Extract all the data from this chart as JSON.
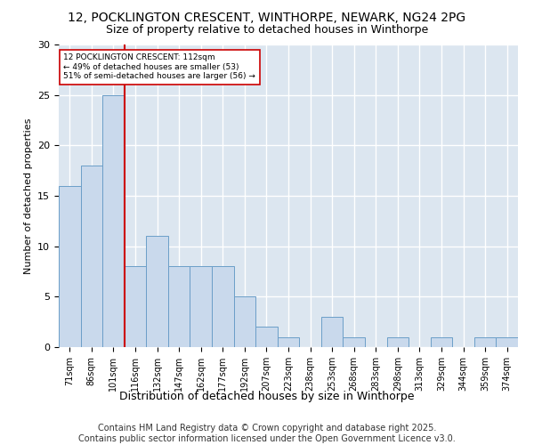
{
  "title1": "12, POCKLINGTON CRESCENT, WINTHORPE, NEWARK, NG24 2PG",
  "title2": "Size of property relative to detached houses in Winthorpe",
  "xlabel": "Distribution of detached houses by size in Winthorpe",
  "ylabel": "Number of detached properties",
  "categories": [
    "71sqm",
    "86sqm",
    "101sqm",
    "116sqm",
    "132sqm",
    "147sqm",
    "162sqm",
    "177sqm",
    "192sqm",
    "207sqm",
    "223sqm",
    "238sqm",
    "253sqm",
    "268sqm",
    "283sqm",
    "298sqm",
    "313sqm",
    "329sqm",
    "344sqm",
    "359sqm",
    "374sqm"
  ],
  "values": [
    16,
    18,
    25,
    8,
    11,
    8,
    8,
    8,
    5,
    2,
    1,
    0,
    3,
    1,
    0,
    1,
    0,
    1,
    0,
    1,
    1
  ],
  "bar_color": "#c9d9ec",
  "bar_edge_color": "#6b9ec8",
  "vline_color": "#cc0000",
  "annotation_text": "12 POCKLINGTON CRESCENT: 112sqm\n← 49% of detached houses are smaller (53)\n51% of semi-detached houses are larger (56) →",
  "annotation_box_color": "#ffffff",
  "annotation_box_edge": "#cc0000",
  "ylim": [
    0,
    30
  ],
  "yticks": [
    0,
    5,
    10,
    15,
    20,
    25,
    30
  ],
  "background_color": "#dce6f0",
  "grid_color": "#ffffff",
  "footer": "Contains HM Land Registry data © Crown copyright and database right 2025.\nContains public sector information licensed under the Open Government Licence v3.0.",
  "title1_fontsize": 10,
  "title2_fontsize": 9,
  "tick_fontsize": 7,
  "ylabel_fontsize": 8,
  "xlabel_fontsize": 9,
  "footer_fontsize": 7
}
